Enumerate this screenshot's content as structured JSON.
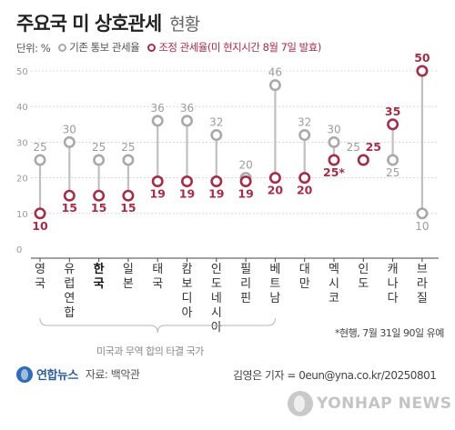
{
  "title": {
    "main": "주요국 미 상호관세",
    "sub": "현황"
  },
  "legend": {
    "unit": "단위: %",
    "base_label": "기존 통보 관세율",
    "adjusted_label": "조정 관세율(미 현지시간 8월 7일 발효)"
  },
  "colors": {
    "base": "#a9a9a9",
    "adjusted": "#a0304a",
    "connector": "#c0c0c0",
    "grid": "#cfcfcf"
  },
  "chart_data": {
    "type": "dumbbell",
    "ylim": [
      0,
      50
    ],
    "yticks": [
      0,
      10,
      20,
      30,
      40,
      50
    ],
    "ytick_labels": [
      "0",
      "10",
      "20",
      "30",
      "40",
      "50"
    ],
    "categories": [
      "영국",
      "유럽연합",
      "한국",
      "일본",
      "태국",
      "캄보디아",
      "인도네시아",
      "필리핀",
      "베트남",
      "대만",
      "멕시코",
      "인도",
      "캐나다",
      "브라질"
    ],
    "highlight_category": "한국",
    "series": [
      {
        "name": "기존 통보 관세율",
        "values": [
          25,
          30,
          25,
          25,
          36,
          36,
          32,
          20,
          46,
          32,
          30,
          25,
          25,
          10
        ],
        "labels": [
          "25",
          "30",
          "25",
          "25",
          "36",
          "36",
          "32",
          "20",
          "46",
          "32",
          "30",
          "25",
          "25",
          "10"
        ]
      },
      {
        "name": "조정 관세율(미 현지시간 8월 7일 발효)",
        "values": [
          10,
          15,
          15,
          15,
          19,
          19,
          19,
          19,
          20,
          20,
          25,
          25,
          35,
          50
        ],
        "labels": [
          "10",
          "15",
          "15",
          "15",
          "19",
          "19",
          "19",
          "19",
          "20",
          "20",
          "25*",
          "25",
          "35",
          "50"
        ]
      }
    ]
  },
  "footnote": "*현행, 7월 31일 90일 유예",
  "brace_label": "미국과 무역 합의 타결 국가",
  "source": {
    "logo": "연합뉴스",
    "text": "자료: 백악관"
  },
  "credit": "김영은 기자 = 0eun@yna.co.kr/20250801",
  "watermark": "YONHAP NEWS"
}
